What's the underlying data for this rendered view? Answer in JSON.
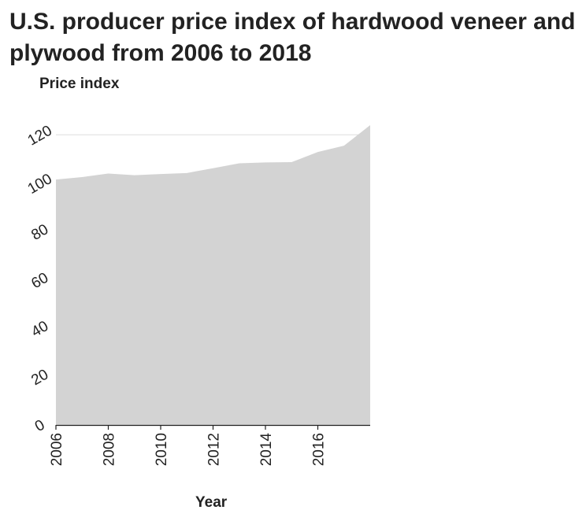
{
  "chart_data": {
    "type": "area",
    "title": "U.S. producer price index of hardwood veneer and plywood from 2006 to 2018",
    "ylabel": "Price index",
    "xlabel": "Year",
    "x": [
      2006,
      2007,
      2008,
      2009,
      2010,
      2011,
      2012,
      2013,
      2014,
      2015,
      2016,
      2017,
      2018
    ],
    "series": [
      {
        "values": [
          101.5,
          102.5,
          104.0,
          103.3,
          103.8,
          104.2,
          106.2,
          108.2,
          108.6,
          108.7,
          112.9,
          115.5,
          124.0
        ]
      }
    ],
    "xticks": [
      "2006",
      "2008",
      "2010",
      "2012",
      "2014",
      "2016"
    ],
    "yticks": [
      "0",
      "20",
      "40",
      "60",
      "80",
      "100",
      "120"
    ],
    "xlim": [
      2006,
      2018
    ],
    "ylim": [
      0,
      124
    ],
    "grid": "horizontal",
    "fill_color": "#d3d3d3",
    "grid_color": "#dddddd"
  }
}
